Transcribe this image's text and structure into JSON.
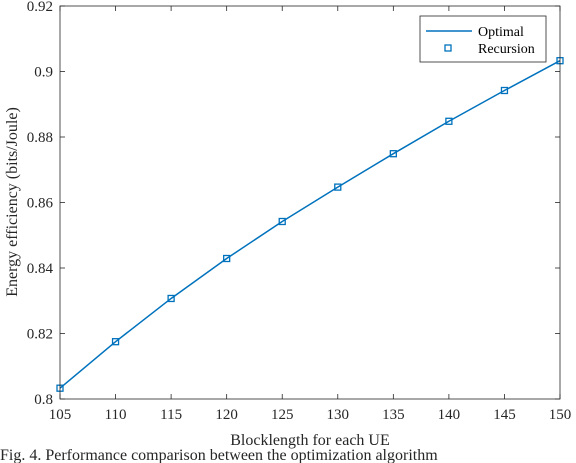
{
  "chart_data": {
    "type": "line",
    "xlabel": "Blocklength for each UE",
    "ylabel": "Energy efficiency (bits/Joule)",
    "xlim": [
      105,
      150
    ],
    "ylim": [
      0.8,
      0.92
    ],
    "x_ticks": [
      105,
      110,
      115,
      120,
      125,
      130,
      135,
      140,
      145,
      150
    ],
    "y_ticks": [
      "0.8",
      "0.82",
      "0.84",
      "0.86",
      "0.88",
      "0.9",
      "0.92"
    ],
    "grid": false,
    "legend_position": "top-right",
    "x": [
      105,
      110,
      115,
      120,
      125,
      130,
      135,
      140,
      145,
      150
    ],
    "series": [
      {
        "name": "Optimal",
        "style": "line",
        "color": "#0072BD",
        "values": [
          0.8033,
          0.8175,
          0.8307,
          0.8429,
          0.8542,
          0.8647,
          0.8749,
          0.8848,
          0.8942,
          0.9033
        ]
      },
      {
        "name": "Recursion",
        "style": "square-markers",
        "color": "#0072BD",
        "values": [
          0.8033,
          0.8175,
          0.8307,
          0.8429,
          0.8542,
          0.8647,
          0.8749,
          0.8848,
          0.8942,
          0.9033
        ]
      }
    ]
  },
  "caption": "Fig. 4.   Performance comparison between the optimization algorithm"
}
